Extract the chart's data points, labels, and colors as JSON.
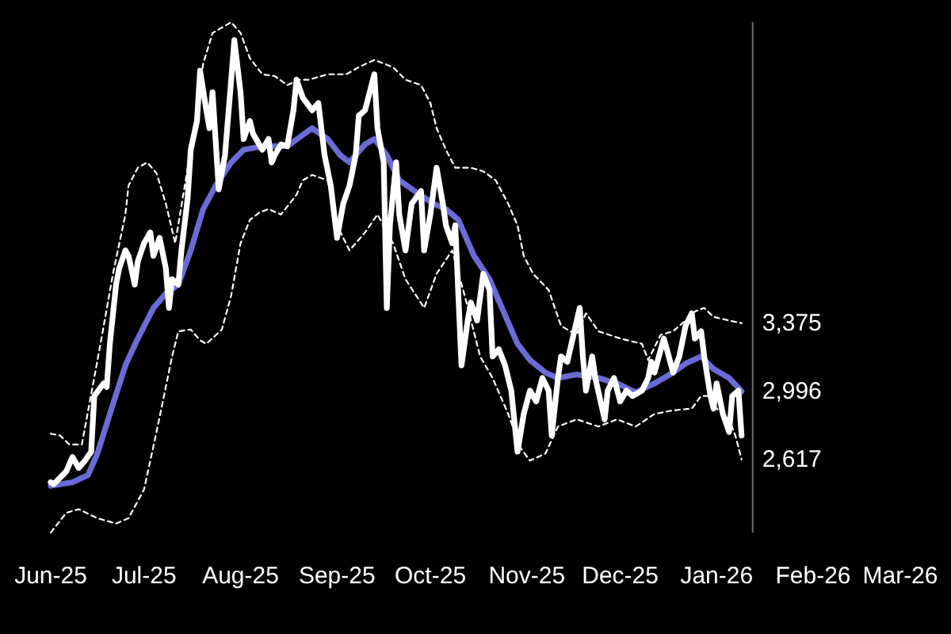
{
  "chart_data": {
    "type": "line",
    "xlim": [
      "2025-06-01",
      "2026-03-01"
    ],
    "xticks": [
      {
        "value": "2025-06-01",
        "label": "Jun-25"
      },
      {
        "value": "2025-07-01",
        "label": "Jul-25"
      },
      {
        "value": "2025-08-01",
        "label": "Aug-25"
      },
      {
        "value": "2025-09-01",
        "label": "Sep-25"
      },
      {
        "value": "2025-10-01",
        "label": "Oct-25"
      },
      {
        "value": "2025-11-01",
        "label": "Nov-25"
      },
      {
        "value": "2025-12-01",
        "label": "Dec-25"
      },
      {
        "value": "2026-01-01",
        "label": "Jan-26"
      },
      {
        "value": "2026-02-01",
        "label": "Feb-26"
      },
      {
        "value": "2026-03-01",
        "label": "Mar-26"
      }
    ],
    "ylim": [
      2210,
      5050
    ],
    "yticks": [
      {
        "value": 2617,
        "label": "2,617"
      },
      {
        "value": 2996,
        "label": "2,996"
      },
      {
        "value": 3375,
        "label": "3,375"
      }
    ],
    "series": [
      {
        "color": "#ffffff",
        "line_style": "dashed",
        "x": [
          "2025-06-01",
          "2025-06-04",
          "2025-06-07",
          "2025-06-11",
          "2025-06-17",
          "2025-06-21",
          "2025-06-25",
          "2025-06-26",
          "2025-06-29",
          "2025-07-02",
          "2025-07-05",
          "2025-07-08",
          "2025-07-11",
          "2025-07-16",
          "2025-07-20",
          "2025-07-23",
          "2025-07-26",
          "2025-07-29",
          "2025-08-01",
          "2025-08-04",
          "2025-08-08",
          "2025-08-12",
          "2025-08-16",
          "2025-08-20",
          "2025-08-23",
          "2025-08-29",
          "2025-09-04",
          "2025-09-08",
          "2025-09-13",
          "2025-09-19",
          "2025-09-23",
          "2025-09-28",
          "2025-10-01",
          "2025-10-03",
          "2025-10-06",
          "2025-10-09",
          "2025-10-14",
          "2025-10-18",
          "2025-10-22",
          "2025-10-26",
          "2025-10-29",
          "2025-10-31",
          "2025-11-03",
          "2025-11-08",
          "2025-11-12",
          "2025-11-17",
          "2025-11-20",
          "2025-11-24",
          "2025-12-01",
          "2025-12-08",
          "2025-12-10",
          "2025-12-14",
          "2025-12-18",
          "2025-12-22",
          "2025-12-25",
          "2025-12-28",
          "2025-12-31",
          "2026-01-05",
          "2026-01-09"
        ],
        "values": [
          2760,
          2750,
          2700,
          2700,
          3260,
          3650,
          3980,
          4140,
          4240,
          4270,
          4210,
          4040,
          3820,
          4340,
          4820,
          4990,
          5020,
          5050,
          4990,
          4850,
          4760,
          4750,
          4700,
          4730,
          4730,
          4760,
          4760,
          4800,
          4840,
          4800,
          4730,
          4700,
          4600,
          4460,
          4340,
          4240,
          4240,
          4220,
          4170,
          4040,
          3920,
          3750,
          3650,
          3560,
          3360,
          3310,
          3430,
          3330,
          3290,
          3260,
          3170,
          3310,
          3330,
          3390,
          3440,
          3460,
          3410,
          3390,
          3375
        ]
      },
      {
        "color": "#ffffff",
        "line_style": "dashed",
        "x": [
          "2025-06-01",
          "2025-06-06",
          "2025-06-10",
          "2025-06-16",
          "2025-06-22",
          "2025-06-26",
          "2025-07-01",
          "2025-07-05",
          "2025-07-10",
          "2025-07-12",
          "2025-07-16",
          "2025-07-19",
          "2025-07-21",
          "2025-07-26",
          "2025-07-29",
          "2025-08-01",
          "2025-08-04",
          "2025-08-07",
          "2025-08-10",
          "2025-08-14",
          "2025-08-19",
          "2025-08-21",
          "2025-08-24",
          "2025-08-29",
          "2025-09-01",
          "2025-09-05",
          "2025-09-10",
          "2025-09-14",
          "2025-09-19",
          "2025-09-23",
          "2025-09-29",
          "2025-10-03",
          "2025-10-08",
          "2025-10-12",
          "2025-10-17",
          "2025-10-21",
          "2025-10-26",
          "2025-10-30",
          "2025-11-02",
          "2025-11-07",
          "2025-11-11",
          "2025-11-17",
          "2025-11-24",
          "2025-11-30",
          "2025-12-06",
          "2025-12-12",
          "2025-12-18",
          "2025-12-24",
          "2025-12-27",
          "2025-12-30",
          "2026-01-01",
          "2026-01-05",
          "2026-01-07",
          "2026-01-09"
        ],
        "values": [
          2210,
          2320,
          2340,
          2290,
          2260,
          2290,
          2450,
          2770,
          3190,
          3330,
          3340,
          3280,
          3260,
          3340,
          3530,
          3820,
          3950,
          3990,
          4010,
          3980,
          4090,
          4170,
          4200,
          4170,
          3920,
          3780,
          3880,
          3980,
          3820,
          3620,
          3460,
          3650,
          3780,
          3530,
          3190,
          3070,
          2870,
          2680,
          2610,
          2650,
          2800,
          2840,
          2800,
          2840,
          2800,
          2870,
          2890,
          2900,
          2970,
          2970,
          2900,
          2840,
          2750,
          2617
        ]
      },
      {
        "color": "#6b6bd6",
        "x": [
          "2025-06-01",
          "2025-06-08",
          "2025-06-13",
          "2025-06-16",
          "2025-06-20",
          "2025-06-25",
          "2025-06-29",
          "2025-07-04",
          "2025-07-08",
          "2025-07-12",
          "2025-07-16",
          "2025-07-20",
          "2025-07-24",
          "2025-07-29",
          "2025-08-02",
          "2025-08-08",
          "2025-08-16",
          "2025-08-20",
          "2025-08-24",
          "2025-08-29",
          "2025-09-02",
          "2025-09-05",
          "2025-09-10",
          "2025-09-13",
          "2025-09-17",
          "2025-09-21",
          "2025-09-26",
          "2025-10-02",
          "2025-10-06",
          "2025-10-10",
          "2025-10-15",
          "2025-10-20",
          "2025-10-24",
          "2025-10-29",
          "2025-11-02",
          "2025-11-07",
          "2025-11-11",
          "2025-11-17",
          "2025-11-24",
          "2025-11-30",
          "2025-12-06",
          "2025-12-12",
          "2025-12-18",
          "2025-12-22",
          "2025-12-27",
          "2025-12-31",
          "2026-01-05",
          "2026-01-09"
        ],
        "values": [
          2470,
          2490,
          2530,
          2650,
          2870,
          3140,
          3290,
          3460,
          3540,
          3590,
          3780,
          4010,
          4140,
          4270,
          4340,
          4360,
          4360,
          4410,
          4460,
          4400,
          4310,
          4270,
          4370,
          4400,
          4310,
          4170,
          4110,
          4040,
          4010,
          3950,
          3750,
          3620,
          3460,
          3260,
          3170,
          3100,
          3070,
          3090,
          3070,
          3040,
          2990,
          3040,
          3100,
          3150,
          3190,
          3120,
          3070,
          2996
        ]
      },
      {
        "color": "#ffffff",
        "x": [
          "2025-06-01",
          "2025-06-02",
          "2025-06-06",
          "2025-06-08",
          "2025-06-10",
          "2025-06-12",
          "2025-06-14",
          "2025-06-15",
          "2025-06-18",
          "2025-06-19",
          "2025-06-20",
          "2025-06-22",
          "2025-06-23",
          "2025-06-25",
          "2025-06-26",
          "2025-06-28",
          "2025-06-29",
          "2025-07-01",
          "2025-07-03",
          "2025-07-04",
          "2025-07-06",
          "2025-07-08",
          "2025-07-09",
          "2025-07-10",
          "2025-07-12",
          "2025-07-13",
          "2025-07-15",
          "2025-07-16",
          "2025-07-18",
          "2025-07-19",
          "2025-07-21",
          "2025-07-22",
          "2025-07-23",
          "2025-07-25",
          "2025-07-27",
          "2025-07-29",
          "2025-07-30",
          "2025-08-01",
          "2025-08-02",
          "2025-08-04",
          "2025-08-05",
          "2025-08-07",
          "2025-08-08",
          "2025-08-10",
          "2025-08-11",
          "2025-08-12",
          "2025-08-14",
          "2025-08-16",
          "2025-08-18",
          "2025-08-19",
          "2025-08-21",
          "2025-08-24",
          "2025-08-26",
          "2025-08-28",
          "2025-08-30",
          "2025-09-01",
          "2025-09-03",
          "2025-09-05",
          "2025-09-07",
          "2025-09-08",
          "2025-09-10",
          "2025-09-13",
          "2025-09-14",
          "2025-09-16",
          "2025-09-17",
          "2025-09-18",
          "2025-09-20",
          "2025-09-21",
          "2025-09-23",
          "2025-09-25",
          "2025-09-28",
          "2025-09-29",
          "2025-10-01",
          "2025-10-03",
          "2025-10-05",
          "2025-10-06",
          "2025-10-08",
          "2025-10-09",
          "2025-10-11",
          "2025-10-13",
          "2025-10-14",
          "2025-10-16",
          "2025-10-18",
          "2025-10-20",
          "2025-10-21",
          "2025-10-23",
          "2025-10-25",
          "2025-10-27",
          "2025-10-29",
          "2025-10-31",
          "2025-11-02",
          "2025-11-04",
          "2025-11-06",
          "2025-11-08",
          "2025-11-09",
          "2025-11-11",
          "2025-11-12",
          "2025-11-14",
          "2025-11-18",
          "2025-11-19",
          "2025-11-20",
          "2025-11-22",
          "2025-11-23",
          "2025-11-26",
          "2025-11-27",
          "2025-11-29",
          "2025-12-01",
          "2025-12-03",
          "2025-12-05",
          "2025-12-08",
          "2025-12-10",
          "2025-12-11",
          "2025-12-12",
          "2025-12-15",
          "2025-12-16",
          "2025-12-18",
          "2025-12-20",
          "2025-12-22",
          "2025-12-24",
          "2025-12-25",
          "2025-12-27",
          "2025-12-28",
          "2025-12-30",
          "2025-12-31",
          "2026-01-01",
          "2026-01-03",
          "2026-01-05",
          "2026-01-06",
          "2026-01-08",
          "2026-01-09"
        ],
        "values": [
          2490,
          2480,
          2550,
          2630,
          2570,
          2610,
          2660,
          2970,
          3040,
          3020,
          3260,
          3590,
          3680,
          3780,
          3750,
          3590,
          3720,
          3820,
          3880,
          3750,
          3850,
          3680,
          3460,
          3620,
          3590,
          3780,
          4070,
          4340,
          4500,
          4780,
          4560,
          4460,
          4660,
          4120,
          4310,
          4730,
          4950,
          4660,
          4400,
          4500,
          4430,
          4370,
          4340,
          4400,
          4270,
          4310,
          4370,
          4360,
          4560,
          4730,
          4630,
          4560,
          4600,
          4310,
          4140,
          3850,
          4040,
          4140,
          4310,
          4530,
          4560,
          4760,
          4460,
          4270,
          3460,
          3920,
          4270,
          3980,
          3780,
          4040,
          4110,
          3780,
          3980,
          4240,
          4040,
          3920,
          3820,
          3920,
          3140,
          3390,
          3490,
          3390,
          3650,
          3560,
          3190,
          3230,
          3140,
          3000,
          2660,
          2870,
          3000,
          2940,
          3070,
          3000,
          2750,
          3070,
          3190,
          3160,
          3460,
          3190,
          3000,
          3190,
          3070,
          2840,
          3000,
          3070,
          2940,
          3000,
          2970,
          3000,
          3070,
          3160,
          3100,
          3290,
          3230,
          3100,
          3190,
          3360,
          3430,
          3290,
          3330,
          3190,
          2970,
          2900,
          3040,
          2870,
          2770,
          2970,
          3000,
          2750
        ]
      }
    ]
  }
}
